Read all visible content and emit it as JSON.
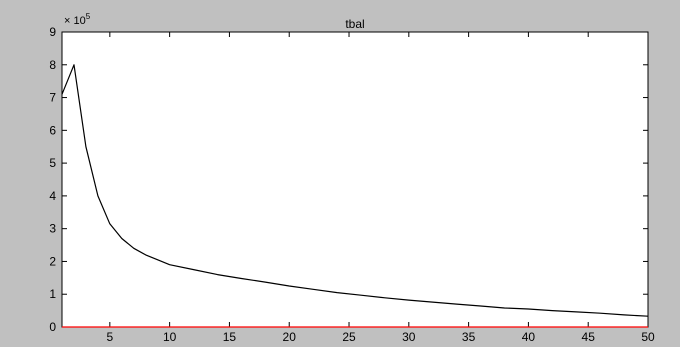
{
  "colors": {
    "figure_background": "#c0c0c0",
    "axes_background": "#ffffff",
    "main_line": "#000000",
    "zero_line": "#ff0000",
    "axis": "#000000"
  },
  "chart_data": {
    "type": "line",
    "title": "tbal",
    "xlabel": "",
    "ylabel": "",
    "y_exponent_label": "× 10",
    "y_exponent_power": "5",
    "xlim": [
      1,
      50
    ],
    "ylim": [
      0,
      9
    ],
    "x_ticks": [
      5,
      10,
      15,
      20,
      25,
      30,
      35,
      40,
      45,
      50
    ],
    "y_ticks": [
      0,
      1,
      2,
      3,
      4,
      5,
      6,
      7,
      8,
      9
    ],
    "grid": false,
    "series": [
      {
        "color": "#000000",
        "x": [
          1,
          2,
          3,
          4,
          5,
          6,
          7,
          8,
          9,
          10,
          12,
          14,
          16,
          18,
          20,
          22,
          24,
          26,
          28,
          30,
          32,
          34,
          36,
          38,
          40,
          42,
          44,
          46,
          48,
          50
        ],
        "y": [
          7.1,
          8.0,
          5.5,
          4.0,
          3.15,
          2.7,
          2.4,
          2.2,
          2.05,
          1.9,
          1.75,
          1.6,
          1.48,
          1.37,
          1.25,
          1.15,
          1.05,
          0.97,
          0.89,
          0.82,
          0.76,
          0.7,
          0.64,
          0.58,
          0.55,
          0.5,
          0.46,
          0.42,
          0.37,
          0.33
        ]
      },
      {
        "color": "#ff0000",
        "x": [
          1,
          50
        ],
        "y": [
          0,
          0
        ]
      }
    ]
  }
}
